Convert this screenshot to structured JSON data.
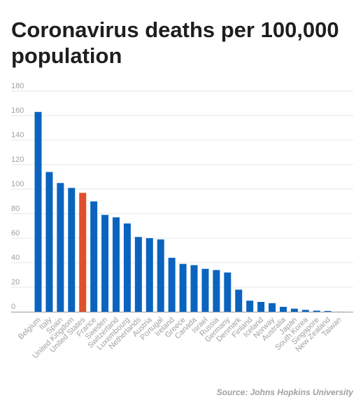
{
  "source": "Source: Johns Hopkins University",
  "chart_data": {
    "type": "bar",
    "title": "Coronavirus deaths per 100,000 population",
    "xlabel": "",
    "ylabel": "",
    "ylim": [
      0,
      180
    ],
    "yticks": [
      0,
      20,
      40,
      60,
      80,
      100,
      120,
      140,
      160,
      180
    ],
    "grid": true,
    "bar_color": "#0a64bf",
    "highlight_color": "#e0502a",
    "highlight_category": "United States",
    "categories": [
      "Belgium",
      "Italy",
      "Spain",
      "United Kingdom",
      "United States",
      "France",
      "Sweden",
      "Switzerland",
      "Luxembourg",
      "Netherlands",
      "Austria",
      "Portugal",
      "Ireland",
      "Greece",
      "Canada",
      "Israel",
      "Russia",
      "Germany",
      "Denmark",
      "Finland",
      "Iceland",
      "Norway",
      "Australia",
      "Japan",
      "South Korea",
      "Singapore",
      "New Zealand",
      "Taiwan"
    ],
    "values": [
      163,
      114,
      105,
      101,
      97,
      90,
      79,
      77,
      72,
      61,
      60,
      59,
      44,
      39,
      38,
      35,
      34,
      32,
      18,
      9,
      8,
      7,
      4,
      2.5,
      1.5,
      0.9,
      0.6,
      0.04
    ]
  }
}
